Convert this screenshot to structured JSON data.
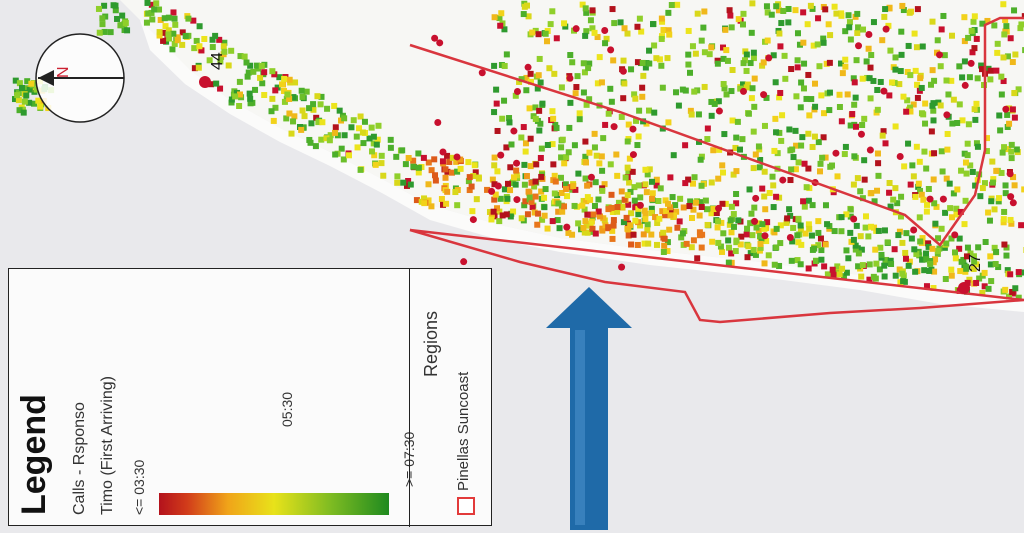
{
  "map": {
    "labels": {
      "north_label": "N",
      "station_a": "44",
      "station_b": "27"
    },
    "colors": {
      "water": "#e9e9ec",
      "land": "#f6f6f4",
      "region_outline": "#d9363e",
      "arrow": "#1f6aa8"
    }
  },
  "legend": {
    "title": "Legend",
    "layer_name": "Calls - Rsponso",
    "layer_sub": "Timo (First Arriving)",
    "scale": {
      "min_label": "<= 03:30",
      "mid_label": "05:30",
      "max_label": ">= 07:30"
    },
    "regions_heading": "Regions",
    "region_name": "Pinellas Suncoast"
  }
}
